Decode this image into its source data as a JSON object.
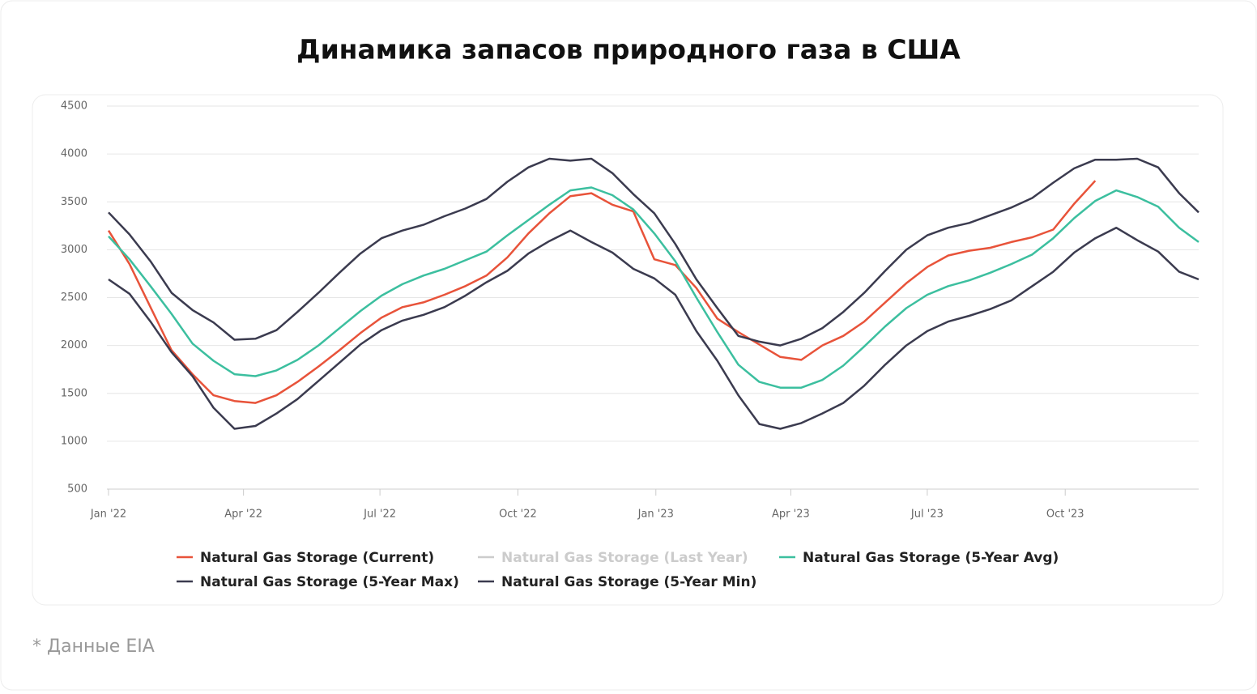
{
  "chart_data": {
    "type": "line",
    "title": "Динамика запасов природного газа в США",
    "footnote": "* Данные EIA",
    "x": [
      0,
      14,
      28,
      42,
      56,
      70,
      84,
      98,
      112,
      126,
      140,
      154,
      168,
      182,
      196,
      210,
      224,
      238,
      252,
      266,
      280,
      294,
      308,
      322,
      336,
      350,
      364,
      378,
      392,
      406,
      420,
      434,
      448,
      462,
      476,
      490,
      504,
      518,
      532,
      546,
      560,
      574,
      588,
      602,
      616,
      630,
      644,
      658,
      672,
      686,
      700,
      714,
      727
    ],
    "xlim": [
      0,
      727
    ],
    "xticks": [
      {
        "value": 0,
        "label": "Jan '22"
      },
      {
        "value": 90,
        "label": "Apr '22"
      },
      {
        "value": 181,
        "label": "Jul '22"
      },
      {
        "value": 273,
        "label": "Oct '22"
      },
      {
        "value": 365,
        "label": "Jan '23"
      },
      {
        "value": 455,
        "label": "Apr '23"
      },
      {
        "value": 546,
        "label": "Jul '23"
      },
      {
        "value": 638,
        "label": "Oct '23"
      }
    ],
    "ylim": [
      500,
      4500
    ],
    "yticks": [
      500,
      1000,
      1500,
      2000,
      2500,
      3000,
      3500,
      4000,
      4500
    ],
    "grid": true,
    "series": [
      {
        "name": "Natural Gas Storage (Current)",
        "color": "#e8533a",
        "values": [
          3200,
          2850,
          2400,
          1950,
          1700,
          1480,
          1420,
          1400,
          1480,
          1620,
          1780,
          1950,
          2130,
          2290,
          2400,
          2450,
          2530,
          2620,
          2730,
          2920,
          3170,
          3380,
          3560,
          3590,
          3470,
          3400,
          2900,
          2840,
          2600,
          2280,
          2140,
          2010,
          1880,
          1850,
          2000,
          2100,
          2250,
          2450,
          2650,
          2820,
          2940,
          2990,
          3020,
          3080,
          3130,
          3210,
          3480,
          3720,
          null,
          null,
          null,
          null,
          null
        ]
      },
      {
        "name": "Natural Gas Storage (Last Year)",
        "color": "#cccccc",
        "hidden": true
      },
      {
        "name": "Natural Gas Storage (5-Year Avg)",
        "color": "#3cbf9f",
        "values": [
          3140,
          2900,
          2620,
          2330,
          2020,
          1840,
          1700,
          1680,
          1740,
          1850,
          2000,
          2180,
          2360,
          2520,
          2640,
          2730,
          2800,
          2890,
          2980,
          3150,
          3310,
          3470,
          3620,
          3650,
          3570,
          3420,
          3170,
          2880,
          2500,
          2140,
          1800,
          1620,
          1560,
          1560,
          1640,
          1790,
          1990,
          2200,
          2390,
          2530,
          2620,
          2680,
          2760,
          2850,
          2950,
          3120,
          3330,
          3510,
          3620,
          3550,
          3450,
          3230,
          3080
        ]
      },
      {
        "name": "Natural Gas Storage (5-Year Max)",
        "color": "#3b3b4f",
        "values": [
          3390,
          3160,
          2880,
          2550,
          2370,
          2240,
          2060,
          2070,
          2160,
          2350,
          2550,
          2760,
          2960,
          3120,
          3200,
          3260,
          3350,
          3430,
          3530,
          3710,
          3860,
          3950,
          3930,
          3950,
          3800,
          3580,
          3380,
          3060,
          2690,
          2390,
          2100,
          2040,
          2000,
          2070,
          2180,
          2350,
          2550,
          2780,
          3000,
          3150,
          3230,
          3280,
          3360,
          3440,
          3540,
          3700,
          3850,
          3940,
          3940,
          3950,
          3860,
          3590,
          3390
        ]
      },
      {
        "name": "Natural Gas Storage (5-Year Min)",
        "color": "#3b3b4f",
        "values": [
          2690,
          2540,
          2250,
          1930,
          1680,
          1350,
          1130,
          1160,
          1290,
          1440,
          1630,
          1820,
          2010,
          2160,
          2260,
          2320,
          2400,
          2520,
          2660,
          2780,
          2960,
          3090,
          3200,
          3080,
          2970,
          2800,
          2700,
          2530,
          2150,
          1840,
          1480,
          1180,
          1130,
          1190,
          1290,
          1400,
          1580,
          1800,
          2000,
          2150,
          2250,
          2310,
          2380,
          2470,
          2620,
          2770,
          2970,
          3120,
          3230,
          3100,
          2980,
          2770,
          2690
        ]
      }
    ]
  }
}
